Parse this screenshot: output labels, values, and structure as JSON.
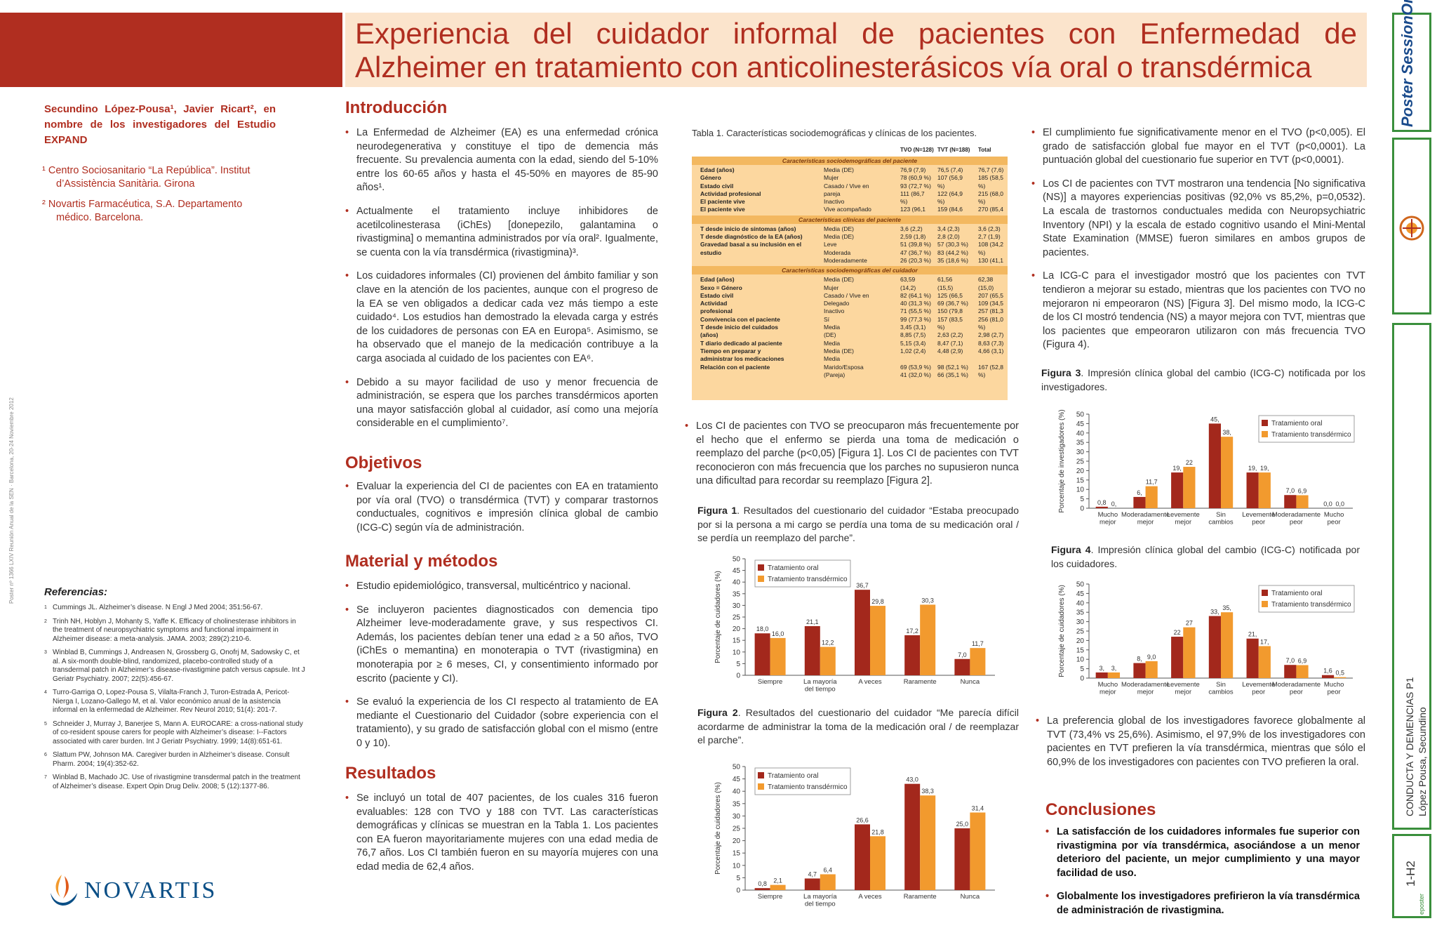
{
  "title": "Experiencia del cuidador informal de pacientes con Enfermedad de Alzheimer en tratamiento con anticolinesterásicos vía oral o transdérmica",
  "authors": "Secundino López-Pousa¹, Javier Ricart², en nombre de los investigadores del Estudio EXPAND",
  "affiliations": [
    "¹ Centro Sociosanitario “La República”. Institut d’Assistència Sanitària. Girona",
    "² Novartis Farmacéutica, S.A. Departamento médico. Barcelona."
  ],
  "side_note": "Poster nº 1366    LXIV Reunión Anual de la SEN · Barcelona, 20-24 Noviembre 2012",
  "references": {
    "heading": "Referencias:",
    "items": [
      "Cummings JL. Alzheimer’s disease. N Engl J Med 2004; 351:56-67.",
      "Trinh NH, Hoblyn J, Mohanty S, Yaffe K. Efficacy of cholinesterase inhibitors in the treatment of neuropsychiatric symptoms and functional impairment in Alzheimer disease: a meta-analysis. JAMA. 2003; 289(2):210-6.",
      "Winblad B, Cummings J, Andreasen N, Grossberg G, Onofrj M, Sadowsky C, et al. A six-month double-blind, randomized, placebo-controlled study of a transdermal patch in Alzheimer’s disease-rivastigmine patch versus capsule. Int J Geriatr Psychiatry. 2007; 22(5):456-67.",
      "Turro-Garriga O, Lopez-Pousa S, Vilalta-Franch J, Turon-Estrada A, Pericot-Nierga I, Lozano-Gallego M, et al. Valor económico anual de la asistencia informal en la enfermedad de Alzheimer. Rev Neurol 2010; 51(4): 201-7.",
      "Schneider J, Murray J, Banerjee S, Mann A. EUROCARE: a cross-national study of co-resident spouse carers for people with Alzheimer’s disease: I--Factors associated with carer burden. Int J Geriatr Psychiatry. 1999; 14(8):651-61.",
      "Slattum PW, Johnson MA. Caregiver burden in Alzheimer’s disease. Consult Pharm. 2004; 19(4):352-62.",
      "Winblad B, Machado JC. Use of rivastigmine transdermal patch in the treatment of Alzheimer’s disease. Expert Opin Drug Deliv. 2008; 5 (12):1377-86."
    ]
  },
  "logo": "NOVARTIS",
  "intro": {
    "heading": "Introducción",
    "items": [
      "La Enfermedad de Alzheimer (EA) es una enfermedad crónica neurodegenerativa y constituye el tipo de demencia más frecuente. Su prevalencia aumenta con la edad, siendo del 5-10% entre los 60-65 años y hasta el 45-50% en mayores de 85-90 años¹.",
      "Actualmente el tratamiento incluye inhibidores de acetilcolinesterasa (iChEs) [donepezilo, galantamina o rivastigmina] o memantina administrados por vía oral². Igualmente, se cuenta con la vía transdérmica (rivastigmina)³.",
      "Los cuidadores informales (CI) provienen del ámbito familiar y son clave en la atención de los pacientes, aunque con el progreso de la EA se ven obligados a dedicar cada vez más tiempo a este cuidado⁴. Los estudios han demostrado la elevada carga y estrés de los cuidadores de personas con EA en Europa⁵. Asimismo, se ha observado que el manejo de la medicación contribuye a la carga asociada al cuidado de los pacientes con EA⁶.",
      "Debido a su mayor facilidad de uso y menor frecuencia de administración, se espera que los parches transdérmicos aporten una mayor satisfacción global al cuidador, así como una mejoría considerable en el cumplimiento⁷."
    ]
  },
  "objetivos": {
    "heading": "Objetivos",
    "items": [
      "Evaluar la experiencia del CI de pacientes con EA en tratamiento por vía oral (TVO) o transdérmica (TVT) y comparar trastornos conductuales, cognitivos e impresión clínica global de cambio (ICG-C) según vía de administración."
    ]
  },
  "metodos": {
    "heading": "Material y métodos",
    "items": [
      "Estudio epidemiológico, transversal, multicéntrico y nacional.",
      "Se incluyeron pacientes diagnosticados con demencia tipo Alzheimer leve-moderadamente grave, y sus respectivos CI. Además, los pacientes debían tener una edad ≥ a 50 años, TVO (iChEs o memantina) en monoterapia o TVT (rivastigmina) en monoterapia por ≥ 6 meses, CI, y consentimiento informado por escrito (paciente y CI).",
      "Se evaluó la experiencia de los CI respecto al tratamiento de EA mediante el Cuestionario del Cuidador (sobre experiencia con el tratamiento), y su grado de satisfacción global con el mismo (entre 0 y 10)."
    ]
  },
  "resultados": {
    "heading": "Resultados",
    "items": [
      "Se incluyó un total de 407 pacientes, de los cuales 316 fueron evaluables: 128 con TVO y 188 con TVT. Las características demográficas y clínicas se muestran en la Tabla 1. Los pacientes con EA fueron mayoritariamente mujeres con una edad media de 76,7 años. Los CI también fueron en su mayoría mujeres con una edad media de 62,4 años."
    ]
  },
  "table1": {
    "caption": "Tabla 1. Características sociodemográficas y clínicas de los pacientes.",
    "columns": [
      "TVO (N=128)",
      "TVT (N=188)",
      "Total"
    ],
    "sections": [
      {
        "band": "Características sociodemográficas del paciente",
        "rows": [
          [
            "Edad (años)",
            "Media (DE)",
            "76,9 (7,9)",
            "76,5 (7,4)",
            "76,7 (7,6)"
          ],
          [
            "Género",
            "Mujer",
            "78 (60,9 %)",
            "107 (56,9",
            "185 (58,5"
          ],
          [
            "Estado civil",
            "Casado / Vive en",
            "93 (72,7 %)",
            "%)",
            "%)"
          ],
          [
            "Actividad profesional",
            "pareja",
            "111 (86,7",
            "122 (64,9",
            "215 (68,0"
          ],
          [
            "El paciente vive",
            "Inactivo",
            "%)",
            "%)",
            "%)"
          ],
          [
            "El paciente vive",
            "Vive acompañado",
            "123 (96,1",
            "159 (84,6",
            "270 (85,4"
          ]
        ]
      },
      {
        "band": "Características clínicas del paciente",
        "rows": [
          [
            "T desde inicio de síntomas (años)",
            "Media (DE)",
            "3,6 (2,2)",
            "3,4 (2,3)",
            "3,6 (2,3)"
          ],
          [
            "T desde diagnóstico de la EA (años)",
            "Media (DE)",
            "2,59 (1,8)",
            "2,8 (2,0)",
            "2,7 (1,9)"
          ],
          [
            "Gravedad basal a su inclusión en el",
            "Leve",
            "51 (39,8 %)",
            "57 (30,3 %)",
            "108 (34,2"
          ],
          [
            "estudio",
            "Moderada",
            "47 (36,7 %)",
            "83 (44,2 %)",
            "%)"
          ],
          [
            "",
            "Moderadamente",
            "26 (20,3 %)",
            "35 (18,6 %)",
            "130 (41,1"
          ]
        ]
      },
      {
        "band": "Características sociodemográficas del cuidador",
        "rows": [
          [
            "Edad (años)",
            "Media (DE)",
            "63,59",
            "61,56",
            "62,38"
          ],
          [
            "Sexo = Género",
            "Mujer",
            "(14,2)",
            "(15,5)",
            "(15,0)"
          ],
          [
            "Estado civil",
            "Casado / Vive en",
            "82 (64,1 %)",
            "125 (66,5",
            "207 (65,5"
          ],
          [
            "Actividad",
            "Delegado",
            "40 (31,3 %)",
            "69 (36,7 %)",
            "109 (34,5"
          ],
          [
            "profesional",
            "Inactivo",
            "71 (55,5 %)",
            "150 (79,8",
            "257 (81,3"
          ],
          [
            "Convivencia con el paciente",
            "Sí",
            "99 (77,3 %)",
            "157 (83,5",
            "256 (81,0"
          ],
          [
            "T desde inicio del cuidados",
            "Media",
            "3,45 (3,1)",
            "%)",
            "%)"
          ],
          [
            "(años)",
            "(DE)",
            "8,85 (7,5)",
            "2,63 (2,2)",
            "2,98 (2,7)"
          ],
          [
            "T diario dedicado al paciente",
            "Media",
            "5,15 (3,4)",
            "8,47 (7,1)",
            "8,63 (7,3)"
          ],
          [
            "Tiempo en preparar y",
            "Media (DE)",
            "1,02 (2,4)",
            "4,48 (2,9)",
            "4,66 (3,1)"
          ],
          [
            "administrar los medicaciones",
            "Media",
            "",
            "",
            ""
          ],
          [
            "Relación con el paciente",
            "Marido/Esposa",
            "69 (53,9 %)",
            "98 (52,1 %)",
            "167 (52,8"
          ],
          [
            "",
            "(Pareja)",
            "41 (32,0 %)",
            "66 (35,1 %)",
            "%)"
          ]
        ]
      }
    ]
  },
  "middle_text": [
    "Los CI de pacientes con TVO se preocuparon más frecuentemente por el hecho que el enfermo se pierda una toma de medicación o reemplazo del parche (p<0,05) [Figura 1]. Los CI de pacientes con TVT reconocieron con más frecuencia que los parches no supusieron nunca una dificultad para recordar su reemplazo [Figura 2]."
  ],
  "fig1_caption": {
    "label": "Figura 1",
    "text": ". Resultados del cuestionario del cuidador “Estaba preocupado por si la persona a mi cargo se perdía una toma de su medicación oral / se perdía un reemplazo del parche”."
  },
  "fig2_caption": {
    "label": "Figura 2",
    "text": ". Resultados del cuestionario del cuidador “Me parecía difícil acordarme de administrar la toma de la medicación oral / de reemplazar el parche”."
  },
  "right_text": [
    "El cumplimiento fue significativamente menor en el TVO (p<0,005). El grado de satisfacción global fue mayor en el TVT (p<0,0001). La puntuación global del cuestionario fue superior en TVT (p<0,0001).",
    "Los CI de pacientes con TVT mostraron una tendencia [No significativa (NS)] a mayores experiencias positivas (92,0% vs 85,2%, p=0,0532). La escala de trastornos conductuales medida con Neuropsychiatric Inventory (NPI) y la escala de estado cognitivo usando el Mini-Mental State Examination (MMSE) fueron similares en ambos grupos de pacientes.",
    "La ICG-C para el investigador mostró que los pacientes con TVT tendieron a mejorar su estado, mientras que los pacientes con TVO no mejoraron ni empeoraron (NS) [Figura 3]. Del mismo modo, la ICG-C de los CI mostró tendencia (NS) a mayor mejora con TVT, mientras que los pacientes que empeoraron utilizaron con más frecuencia TVO (Figura 4)."
  ],
  "fig3_caption": {
    "label": "Figura 3",
    "text": ". Impresión clínica global del cambio (ICG-C) notificada por los investigadores."
  },
  "fig4_caption": {
    "label": "Figura 4",
    "text": ". Impresión clínica global del cambio (ICG-C) notificada por los cuidadores."
  },
  "right_text2": [
    "La preferencia global de los investigadores favorece globalmente al TVT (73,4% vs 25,6%). Asimismo, el 97,9% de los investigadores con pacientes en TVT prefieren la vía transdérmica, mientras que sólo el 60,9% de los investigadores con pacientes con TVO prefieren la oral."
  ],
  "conclusiones": {
    "heading": "Conclusiones",
    "items": [
      "La satisfacción de los cuidadores informales fue superior con rivastigmina por vía transdérmica, asociándose a un menor deterioro del paciente, un mejor cumplimiento y una mayor facilidad de uso.",
      "Globalmente los investigadores prefirieron la vía transdérmica de administración de rivastigmina."
    ]
  },
  "sidebar": {
    "logo_text": "Poster SessionOnline",
    "box3_line1": "CONDUCTA Y DEMENCIAS P1",
    "box3_line2": "López Pousa, Secundino",
    "box4_code": "1-H2",
    "box4_small": "eposter"
  },
  "colors": {
    "oral": "#a3281c",
    "transdermal": "#f29a2e",
    "accent": "#b02e20",
    "title_bg": "#fbe4cc",
    "sidebar_border": "#3a8f3c"
  },
  "chart_data": [
    {
      "type": "bar",
      "title": "Figura 1",
      "ylabel": "Porcentaje de cuidadores (%)",
      "ylim": [
        0,
        50
      ],
      "yticks": [
        0,
        5,
        10,
        15,
        20,
        25,
        30,
        35,
        40,
        45,
        50
      ],
      "categories": [
        "Siempre",
        "La mayoría del tiempo",
        "A veces",
        "Raramente",
        "Nunca"
      ],
      "series": [
        {
          "name": "Tratamiento oral",
          "values": [
            18.0,
            21.1,
            36.7,
            17.2,
            7.0
          ]
        },
        {
          "name": "Tratamiento transdérmico",
          "values": [
            16.0,
            12.2,
            29.8,
            30.3,
            11.7
          ]
        }
      ],
      "value_labels": [
        [
          "18,0",
          "21,1",
          "36,7",
          "17,2",
          "7,0"
        ],
        [
          "16,0",
          "12,2",
          "29,8",
          "30,3",
          "11,7"
        ]
      ]
    },
    {
      "type": "bar",
      "title": "Figura 2",
      "ylabel": "Porcentaje de cuidadores (%)",
      "ylim": [
        0,
        50
      ],
      "yticks": [
        0,
        5,
        10,
        15,
        20,
        25,
        30,
        35,
        40,
        45,
        50
      ],
      "categories": [
        "Siempre",
        "La mayoría del tiempo",
        "A veces",
        "Raramente",
        "Nunca"
      ],
      "series": [
        {
          "name": "Tratamiento oral",
          "values": [
            0.8,
            4.7,
            26.6,
            43.0,
            25.0
          ]
        },
        {
          "name": "Tratamiento transdérmico",
          "values": [
            2.1,
            6.4,
            21.8,
            38.3,
            31.4
          ]
        }
      ],
      "value_labels": [
        [
          "0,8",
          "4,7",
          "26,6",
          "43,0",
          "25,0"
        ],
        [
          "2,1",
          "6,4",
          "21,8",
          "38,3",
          "31,4"
        ]
      ]
    },
    {
      "type": "bar",
      "title": "Figura 3",
      "ylabel": "Porcentaje de investigadores (%)",
      "ylim": [
        0,
        50
      ],
      "yticks": [
        0,
        5,
        10,
        15,
        20,
        25,
        30,
        35,
        40,
        45,
        50
      ],
      "categories": [
        "Mucho mejor",
        "Moderadamente mejor",
        "Levemente mejor",
        "Sin cambios",
        "Levemente peor",
        "Moderadamente peor",
        "Mucho peor"
      ],
      "series": [
        {
          "name": "Tratamiento oral",
          "values": [
            0.8,
            6,
            19,
            45,
            19,
            7.0,
            0.0
          ]
        },
        {
          "name": "Tratamiento transdérmico",
          "values": [
            0,
            11.7,
            22,
            38,
            19,
            6.9,
            0.0
          ]
        }
      ],
      "value_labels": [
        [
          "0,8",
          "6,",
          "19,",
          "45,",
          "19,",
          "7,0",
          "0,0"
        ],
        [
          "0,",
          "11,7",
          "22",
          "38,",
          "19,",
          "6,9",
          "0,0"
        ]
      ]
    },
    {
      "type": "bar",
      "title": "Figura 4",
      "ylabel": "Porcentaje de cuidadores (%)",
      "ylim": [
        0,
        50
      ],
      "yticks": [
        0,
        5,
        10,
        15,
        20,
        25,
        30,
        35,
        40,
        45,
        50
      ],
      "categories": [
        "Mucho mejor",
        "Moderadamente mejor",
        "Levemente mejor",
        "Sin cambios",
        "Levemente peor",
        "Moderadamente peor",
        "Mucho peor"
      ],
      "series": [
        {
          "name": "Tratamiento oral",
          "values": [
            3,
            8,
            22,
            33,
            21,
            7.0,
            1.6
          ]
        },
        {
          "name": "Tratamiento transdérmico",
          "values": [
            3,
            9.0,
            27,
            35,
            17,
            6.9,
            0.5
          ]
        }
      ],
      "value_labels": [
        [
          "3,",
          "8,",
          "22",
          "33,",
          "21,",
          "7,0",
          "1,6"
        ],
        [
          "3,",
          "9,0",
          "27",
          "35,",
          "17,",
          "6,9",
          "0,5"
        ]
      ]
    }
  ]
}
